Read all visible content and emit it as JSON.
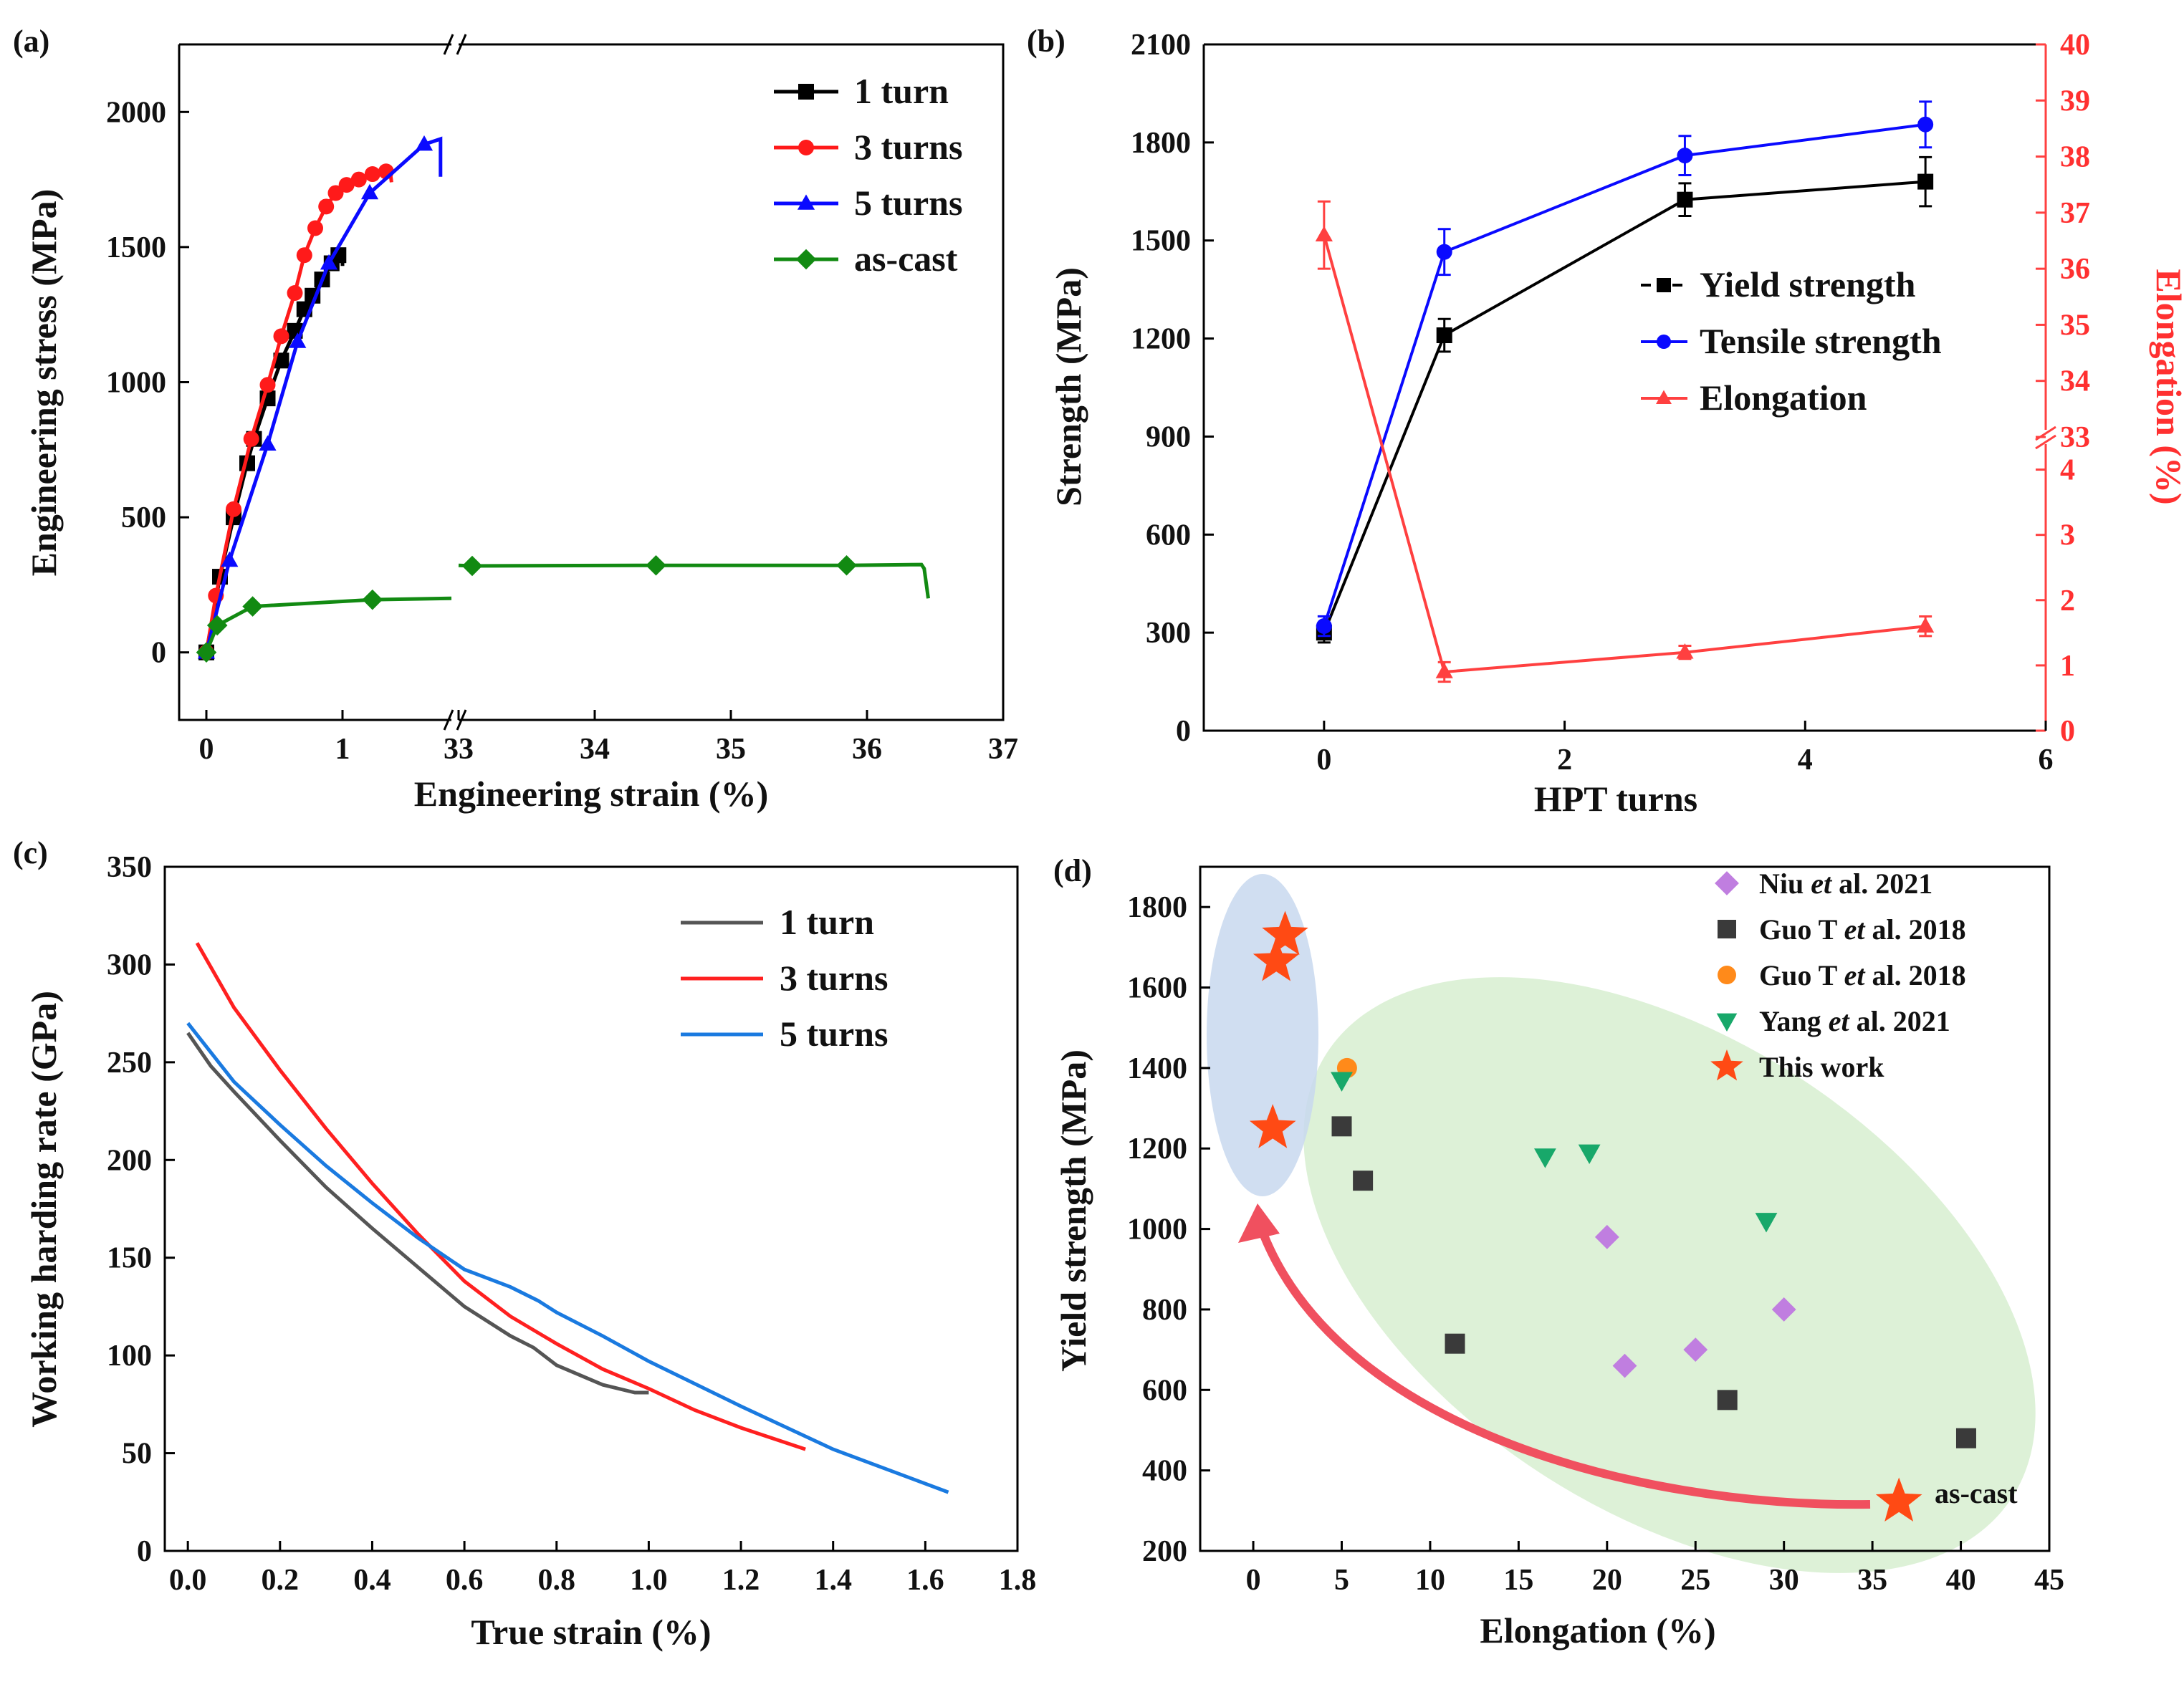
{
  "chart_data": [
    {
      "panel": "(a)",
      "type": "line",
      "xlabel": "Engineering strain (%)",
      "ylabel": "Engineering stress (MPa)",
      "broken_x_axis": true,
      "x_segments": [
        {
          "range": [
            -0.2,
            1.8
          ],
          "ticks": [
            0,
            1
          ]
        },
        {
          "range": [
            33,
            37
          ],
          "ticks": [
            33,
            34,
            35,
            36,
            37
          ]
        }
      ],
      "ylim": [
        -250,
        2250
      ],
      "yticks": [
        0,
        500,
        1000,
        1500,
        2000
      ],
      "legend_position": "top-right",
      "series": [
        {
          "name": "1 turn",
          "color": "#000000",
          "marker": "square",
          "x": [
            0,
            0.1,
            0.2,
            0.3,
            0.35,
            0.45,
            0.55,
            0.65,
            0.72,
            0.78,
            0.85,
            0.92,
            0.97
          ],
          "y": [
            0,
            280,
            500,
            700,
            790,
            940,
            1080,
            1190,
            1270,
            1320,
            1380,
            1440,
            1470
          ]
        },
        {
          "name": "3 turns",
          "color": "#ff1a1a",
          "marker": "circle",
          "x": [
            0,
            0.07,
            0.2,
            0.33,
            0.45,
            0.55,
            0.65,
            0.72,
            0.8,
            0.88,
            0.95,
            1.03,
            1.12,
            1.22,
            1.32
          ],
          "y": [
            0,
            210,
            530,
            790,
            990,
            1170,
            1330,
            1470,
            1570,
            1650,
            1700,
            1730,
            1750,
            1770,
            1780
          ]
        },
        {
          "name": "5 turns",
          "color": "#0a0aff",
          "marker": "triangle",
          "x": [
            0,
            0.17,
            0.45,
            0.67,
            0.9,
            1.2,
            1.6
          ],
          "y": [
            0,
            340,
            770,
            1150,
            1440,
            1700,
            1880
          ]
        },
        {
          "name": "as-cast",
          "color": "#128a12",
          "marker": "diamond",
          "x": [
            0,
            0.08,
            0.34,
            1.22,
            33.1,
            34.45,
            35.85
          ],
          "y": [
            0,
            100,
            170,
            195,
            320,
            322,
            322
          ]
        }
      ]
    },
    {
      "panel": "(b)",
      "type": "line",
      "xlabel": "HPT turns",
      "ylabel": "Strength (MPa)",
      "y2label": "Elongation (%)",
      "xlim": [
        -1,
        6
      ],
      "xticks": [
        0,
        2,
        4,
        6
      ],
      "ylim": [
        0,
        2100
      ],
      "yticks": [
        0,
        300,
        600,
        900,
        1200,
        1500,
        1800,
        2100
      ],
      "y2_ticks": [
        0,
        1,
        2,
        3,
        4,
        33,
        34,
        35,
        36,
        37,
        38,
        39,
        40
      ],
      "y2_broken": true,
      "legend_position": "right-middle",
      "series": [
        {
          "name": "Yield strength",
          "color": "#000000",
          "marker": "square",
          "x": [
            0,
            1,
            3,
            5
          ],
          "y": [
            300,
            1210,
            1625,
            1680
          ],
          "err": [
            30,
            50,
            50,
            75
          ]
        },
        {
          "name": "Tensile strength",
          "color": "#0a0aff",
          "marker": "circle",
          "x": [
            0,
            1,
            3,
            5
          ],
          "y": [
            320,
            1465,
            1760,
            1855
          ],
          "err": [
            30,
            70,
            60,
            70
          ]
        },
        {
          "name": "Elongation",
          "color": "#ff4040",
          "marker": "triangle",
          "axis": "y2",
          "x": [
            0,
            1,
            3,
            5
          ],
          "y": [
            36.6,
            0.9,
            1.2,
            1.6
          ],
          "err": [
            0.6,
            0.15,
            0.1,
            0.15
          ]
        }
      ]
    },
    {
      "panel": "(c)",
      "type": "line",
      "xlabel": "True strain (%)",
      "ylabel": "Working harding rate (GPa)",
      "xlim": [
        -0.05,
        1.8
      ],
      "xticks": [
        "0.0",
        "0.2",
        "0.4",
        "0.6",
        "0.8",
        "1.0",
        "1.2",
        "1.4",
        "1.6",
        "1.8"
      ],
      "ylim": [
        0,
        350
      ],
      "yticks": [
        0,
        50,
        100,
        150,
        200,
        250,
        300,
        350
      ],
      "legend_position": "top-right",
      "series": [
        {
          "name": "1 turn",
          "color": "#555555",
          "x": [
            0,
            0.05,
            0.1,
            0.2,
            0.3,
            0.4,
            0.5,
            0.6,
            0.7,
            0.75,
            0.8,
            0.9,
            0.97,
            1.0
          ],
          "y": [
            265,
            248,
            235,
            210,
            186,
            165,
            145,
            125,
            110,
            104,
            95,
            85,
            81,
            81
          ]
        },
        {
          "name": "3 turns",
          "color": "#ff2020",
          "x": [
            0.02,
            0.1,
            0.2,
            0.3,
            0.4,
            0.5,
            0.6,
            0.7,
            0.8,
            0.9,
            1.0,
            1.1,
            1.2,
            1.34
          ],
          "y": [
            311,
            278,
            246,
            216,
            188,
            162,
            138,
            120,
            106,
            93,
            83,
            72,
            63,
            52
          ]
        },
        {
          "name": "5 turns",
          "color": "#1a7ae0",
          "x": [
            0,
            0.1,
            0.2,
            0.3,
            0.4,
            0.5,
            0.6,
            0.7,
            0.76,
            0.8,
            0.9,
            1.0,
            1.2,
            1.4,
            1.65
          ],
          "y": [
            270,
            240,
            218,
            197,
            178,
            160,
            144,
            135,
            128,
            122,
            110,
            97,
            74,
            52,
            30
          ]
        }
      ]
    },
    {
      "panel": "(d)",
      "type": "scatter",
      "xlabel": "Elongation (%)",
      "ylabel": "Yield strength (MPa)",
      "xlim": [
        -3,
        45
      ],
      "xticks": [
        0,
        5,
        10,
        15,
        20,
        25,
        30,
        35,
        40,
        45
      ],
      "ylim": [
        200,
        1900
      ],
      "yticks": [
        200,
        400,
        600,
        800,
        1000,
        1200,
        1400,
        1600,
        1800
      ],
      "legend_position": "top-right",
      "annotation": "as-cast",
      "series": [
        {
          "name": "Niu",
          "name_em": "et",
          "name_tail": "al. 2021",
          "color": "#c07ee0",
          "marker": "diamond",
          "x": [
            20,
            21,
            25,
            30
          ],
          "y": [
            980,
            660,
            700,
            800
          ]
        },
        {
          "name": "Guo T",
          "name_em": "et",
          "name_tail": "al. 2018",
          "color": "#3a3a3a",
          "marker": "square",
          "x": [
            5,
            6.2,
            11.4,
            26.8,
            40.3
          ],
          "y": [
            1255,
            1120,
            715,
            575,
            480
          ]
        },
        {
          "name": "Guo T",
          "name_em": "et",
          "name_tail": "al. 2018",
          "color": "#ff8a1a",
          "marker": "circle",
          "x": [
            5.3
          ],
          "y": [
            1400
          ]
        },
        {
          "name": "Yang",
          "name_em": "et",
          "name_tail": "al. 2021",
          "color": "#18a86a",
          "marker": "triangle-down",
          "x": [
            5,
            16.5,
            19,
            29
          ],
          "y": [
            1370,
            1180,
            1190,
            1020
          ]
        },
        {
          "name": "This work",
          "name_em": "",
          "name_tail": "",
          "color": "#ff4a14",
          "marker": "star",
          "x": [
            1.1,
            1.3,
            1.8,
            36.5
          ],
          "y": [
            1250,
            1665,
            1730,
            322
          ]
        }
      ]
    }
  ]
}
